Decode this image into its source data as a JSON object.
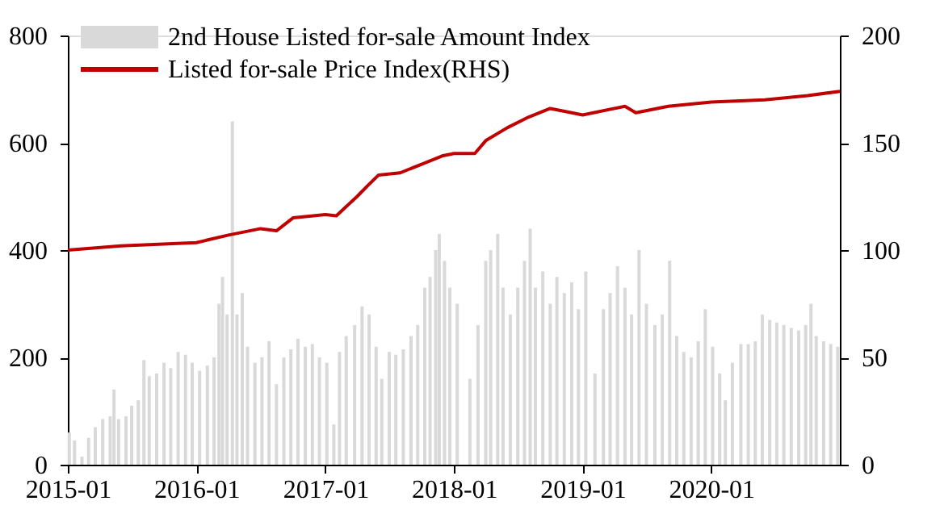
{
  "chart_data": {
    "type": "bar",
    "legend": "top left",
    "grid": false,
    "xlim": [
      "2015-01-01",
      "2020-12-31"
    ],
    "xticks": [
      "2015-01",
      "2016-01",
      "2017-01",
      "2018-01",
      "2019-01",
      "2020-01"
    ],
    "ylim": [
      0,
      800
    ],
    "yticks": [
      0,
      200,
      400,
      600,
      800
    ],
    "y2lim": [
      0,
      200
    ],
    "y2ticks": [
      0,
      50,
      100,
      150,
      200
    ],
    "series": [
      {
        "name": "2nd House Listed for-sale Amount Index",
        "color": "#d9d9d9",
        "x": [
          "2015-01-05",
          "2015-01-20",
          "2015-02-10",
          "2015-03-01",
          "2015-03-20",
          "2015-04-10",
          "2015-05-01",
          "2015-05-12",
          "2015-05-25",
          "2015-06-15",
          "2015-07-01",
          "2015-07-20",
          "2015-08-05",
          "2015-08-20",
          "2015-09-10",
          "2015-10-01",
          "2015-10-20",
          "2015-11-10",
          "2015-12-01",
          "2015-12-20",
          "2016-01-10",
          "2016-02-01",
          "2016-02-20",
          "2016-03-05",
          "2016-03-15",
          "2016-03-28",
          "2016-04-12",
          "2016-04-25",
          "2016-05-10",
          "2016-05-25",
          "2016-06-15",
          "2016-07-05",
          "2016-07-25",
          "2016-08-15",
          "2016-09-05",
          "2016-09-25",
          "2016-10-15",
          "2016-11-05",
          "2016-11-25",
          "2016-12-15",
          "2017-01-05",
          "2017-01-25",
          "2017-02-10",
          "2017-03-01",
          "2017-03-25",
          "2017-04-15",
          "2017-05-05",
          "2017-05-25",
          "2017-06-10",
          "2017-07-01",
          "2017-07-20",
          "2017-08-10",
          "2017-09-01",
          "2017-09-20",
          "2017-10-10",
          "2017-10-25",
          "2017-11-10",
          "2017-11-20",
          "2017-12-05",
          "2017-12-20",
          "2018-01-10",
          "2018-02-15",
          "2018-03-10",
          "2018-04-01",
          "2018-04-15",
          "2018-05-05",
          "2018-05-20",
          "2018-06-10",
          "2018-07-01",
          "2018-07-20",
          "2018-08-05",
          "2018-08-20",
          "2018-09-10",
          "2018-10-01",
          "2018-10-20",
          "2018-11-10",
          "2018-12-01",
          "2018-12-20",
          "2019-01-10",
          "2019-02-05",
          "2019-03-01",
          "2019-03-20",
          "2019-04-10",
          "2019-05-01",
          "2019-05-20",
          "2019-06-10",
          "2019-07-01",
          "2019-07-25",
          "2019-08-15",
          "2019-09-05",
          "2019-09-25",
          "2019-10-15",
          "2019-11-05",
          "2019-11-25",
          "2019-12-15",
          "2020-01-05",
          "2020-01-25",
          "2020-02-10",
          "2020-03-01",
          "2020-03-25",
          "2020-04-15",
          "2020-05-05",
          "2020-05-25",
          "2020-06-15",
          "2020-07-05",
          "2020-07-25",
          "2020-08-15",
          "2020-09-05",
          "2020-09-25",
          "2020-10-10",
          "2020-10-25",
          "2020-11-15",
          "2020-12-05",
          "2020-12-25"
        ],
        "values": [
          60,
          45,
          15,
          50,
          70,
          85,
          90,
          140,
          85,
          90,
          110,
          120,
          195,
          165,
          170,
          190,
          180,
          210,
          205,
          190,
          175,
          185,
          200,
          300,
          350,
          280,
          640,
          280,
          320,
          220,
          190,
          200,
          230,
          150,
          200,
          215,
          235,
          220,
          225,
          200,
          190,
          75,
          210,
          240,
          260,
          295,
          280,
          220,
          160,
          210,
          205,
          215,
          240,
          260,
          330,
          350,
          400,
          430,
          380,
          330,
          300,
          160,
          260,
          380,
          400,
          430,
          330,
          280,
          330,
          380,
          440,
          330,
          360,
          300,
          350,
          320,
          340,
          290,
          360,
          170,
          290,
          320,
          370,
          330,
          280,
          400,
          300,
          260,
          280,
          380,
          240,
          210,
          200,
          230,
          290,
          220,
          170,
          120,
          190,
          225,
          225,
          230,
          280,
          270,
          265,
          260,
          255,
          250,
          260,
          300,
          240,
          230,
          225,
          220
        ]
      },
      {
        "name": "Listed for-sale Price Index(RHS)",
        "type": "line",
        "axis": "y2",
        "color": "#c00000",
        "x": [
          "2015-01-01",
          "2015-06-01",
          "2016-01-01",
          "2016-04-01",
          "2016-07-01",
          "2016-08-15",
          "2016-10-01",
          "2017-01-01",
          "2017-02-01",
          "2017-04-01",
          "2017-05-01",
          "2017-06-01",
          "2017-08-01",
          "2017-10-01",
          "2017-12-01",
          "2018-01-01",
          "2018-03-01",
          "2018-04-01",
          "2018-06-01",
          "2018-08-01",
          "2018-10-01",
          "2018-12-01",
          "2019-01-01",
          "2019-05-01",
          "2019-06-01",
          "2019-09-01",
          "2020-01-01",
          "2020-06-01",
          "2020-10-01",
          "2020-12-31"
        ],
        "values": [
          100,
          102,
          103.5,
          107,
          110,
          109,
          115,
          116.5,
          116,
          125,
          130,
          135,
          136,
          140,
          144,
          145,
          145,
          151,
          157,
          162,
          166,
          164,
          163,
          167,
          164,
          167,
          169,
          170,
          172,
          174
        ]
      }
    ]
  }
}
